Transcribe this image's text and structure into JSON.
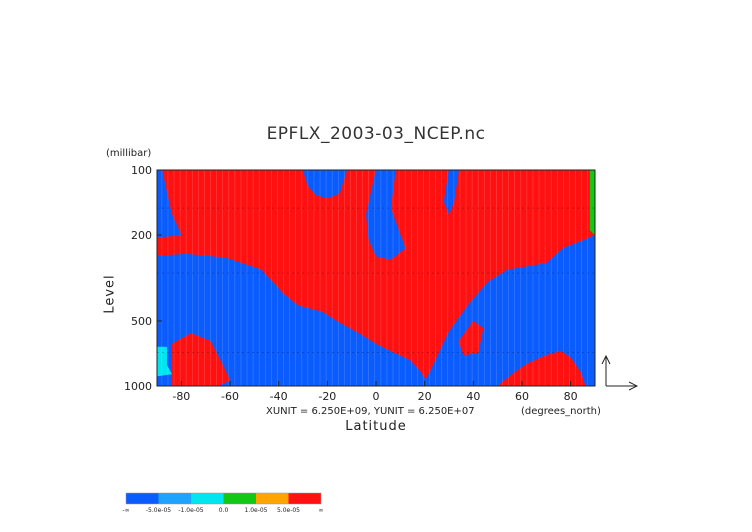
{
  "chart_data": {
    "type": "heatmap",
    "title": "EPFLX_2003-03_NCEP.nc",
    "ylabel": "Level",
    "yunit": "(millibar)",
    "xlabel": "Latitude",
    "xunit": "(degrees_north)",
    "unit_note": "XUNIT = 6.250E+09, YUNIT = 6.250E+07",
    "xlim": [
      -90,
      90
    ],
    "ylim": [
      1000,
      100
    ],
    "y_scale": "log",
    "x_ticks": [
      -80,
      -60,
      -40,
      -20,
      0,
      20,
      40,
      60,
      80
    ],
    "x_tick_labels": [
      "-80",
      "-60",
      "-40",
      "-20",
      "0",
      "20",
      "40",
      "60",
      "80"
    ],
    "y_ticks": [
      1000,
      500,
      200,
      100
    ],
    "y_tick_labels": [
      "1000",
      "500",
      "200",
      "100"
    ],
    "levels": [
      "-∞",
      "-5.0e-05",
      "-1.0e-05",
      "0.0",
      "1.0e-05",
      "5.0e-05",
      "∞"
    ],
    "level_colors": [
      "#0a5cff",
      "#1ea3ff",
      "#00e5f0",
      "#12c814",
      "#ffa400",
      "#ff1111"
    ],
    "vector_arrows": true,
    "regions": [
      {
        "value": 6,
        "polygon": [
          [
            -90,
            100
          ],
          [
            90,
            100
          ],
          [
            90,
            1000
          ],
          [
            -90,
            1000
          ]
        ]
      },
      {
        "value": 1,
        "polygon": [
          [
            -90,
            250
          ],
          [
            -78,
            245
          ],
          [
            -62,
            255
          ],
          [
            -47,
            290
          ],
          [
            -38,
            375
          ],
          [
            -32,
            425
          ],
          [
            -22,
            455
          ],
          [
            -15,
            510
          ],
          [
            -6,
            580
          ],
          [
            0,
            640
          ],
          [
            7,
            700
          ],
          [
            14,
            760
          ],
          [
            18,
            850
          ],
          [
            22,
            1000
          ],
          [
            -90,
            1000
          ]
        ]
      },
      {
        "value": 1,
        "polygon": [
          [
            -90,
            100
          ],
          [
            -88,
            100
          ],
          [
            -84,
            160
          ],
          [
            -80,
            200
          ],
          [
            -90,
            205
          ]
        ]
      },
      {
        "value": 1,
        "polygon": [
          [
            -30,
            100
          ],
          [
            -12,
            100
          ],
          [
            -15,
            128
          ],
          [
            -20,
            135
          ],
          [
            -25,
            130
          ],
          [
            -28,
            118
          ]
        ]
      },
      {
        "value": 1,
        "polygon": [
          [
            0,
            100
          ],
          [
            8,
            100
          ],
          [
            6,
            150
          ],
          [
            10,
            200
          ],
          [
            12,
            230
          ],
          [
            6,
            260
          ],
          [
            0,
            250
          ],
          [
            -3,
            210
          ],
          [
            -4,
            160
          ]
        ]
      },
      {
        "value": 1,
        "polygon": [
          [
            30,
            100
          ],
          [
            34,
            100
          ],
          [
            32,
            140
          ],
          [
            30,
            160
          ],
          [
            28,
            140
          ]
        ]
      },
      {
        "value": 1,
        "polygon": [
          [
            19,
            1000
          ],
          [
            22,
            870
          ],
          [
            30,
            560
          ],
          [
            38,
            420
          ],
          [
            46,
            330
          ],
          [
            54,
            290
          ],
          [
            62,
            280
          ],
          [
            70,
            270
          ],
          [
            77,
            230
          ],
          [
            86,
            210
          ],
          [
            90,
            200
          ],
          [
            90,
            1000
          ]
        ]
      },
      {
        "value": 6,
        "polygon": [
          [
            -84,
            640
          ],
          [
            -76,
            570
          ],
          [
            -68,
            620
          ],
          [
            -63,
            800
          ],
          [
            -60,
            940
          ],
          [
            -65,
            1000
          ],
          [
            -84,
            1000
          ]
        ]
      },
      {
        "value": 6,
        "polygon": [
          [
            34,
            620
          ],
          [
            40,
            500
          ],
          [
            44,
            540
          ],
          [
            42,
            700
          ],
          [
            36,
            720
          ]
        ]
      },
      {
        "value": 6,
        "polygon": [
          [
            50,
            1000
          ],
          [
            56,
            880
          ],
          [
            62,
            790
          ],
          [
            70,
            720
          ],
          [
            76,
            690
          ],
          [
            80,
            740
          ],
          [
            84,
            860
          ],
          [
            86,
            1000
          ]
        ]
      },
      {
        "value": 3,
        "polygon": [
          [
            -90,
            660
          ],
          [
            -86,
            660
          ],
          [
            -86,
            800
          ],
          [
            -84,
            880
          ],
          [
            -90,
            900
          ]
        ]
      },
      {
        "value": 4,
        "polygon": [
          [
            88,
            100
          ],
          [
            90,
            100
          ],
          [
            90,
            200
          ],
          [
            88,
            190
          ]
        ]
      }
    ]
  },
  "colorbar": {
    "labels": [
      "-∞",
      "-5.0e-05",
      "-1.0e-05",
      "0.0",
      "1.0e-05",
      "5.0e-05",
      "∞"
    ]
  }
}
